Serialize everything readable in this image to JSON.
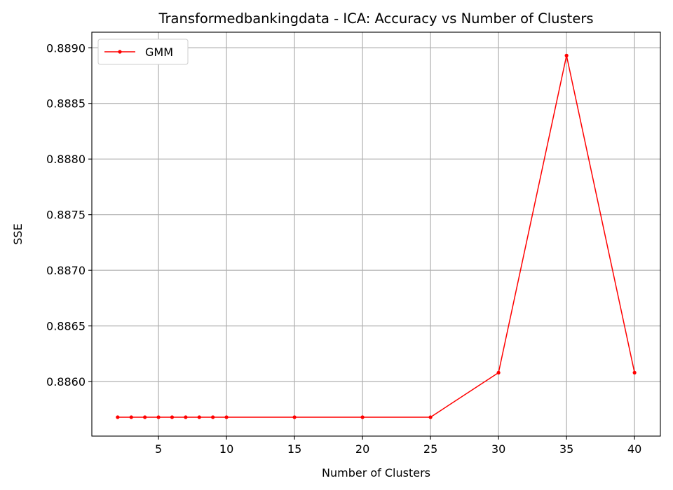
{
  "chart_data": {
    "type": "line",
    "title": "Transformedbankingdata - ICA: Accuracy vs Number of Clusters",
    "xlabel": "Number of Clusters",
    "ylabel": "SSE",
    "xlim": [
      0.1,
      41.9
    ],
    "ylim": [
      0.88551,
      0.88914
    ],
    "x_ticks": [
      5,
      10,
      15,
      20,
      25,
      30,
      35,
      40
    ],
    "y_ticks": [
      0.886,
      0.8865,
      0.887,
      0.8875,
      0.888,
      0.8885,
      0.889
    ],
    "y_tick_labels": [
      "0.8860",
      "0.8865",
      "0.8870",
      "0.8875",
      "0.8880",
      "0.8885",
      "0.8890"
    ],
    "grid": true,
    "legend_position": "upper-left",
    "series": [
      {
        "name": "GMM",
        "color": "#ff0000",
        "marker": "circle",
        "x": [
          2,
          3,
          4,
          5,
          6,
          7,
          8,
          9,
          10,
          15,
          20,
          25,
          30,
          35,
          40
        ],
        "y": [
          0.88568,
          0.88568,
          0.88568,
          0.88568,
          0.88568,
          0.88568,
          0.88568,
          0.88568,
          0.88568,
          0.88568,
          0.88568,
          0.88568,
          0.88608,
          0.88893,
          0.88608
        ]
      }
    ]
  }
}
